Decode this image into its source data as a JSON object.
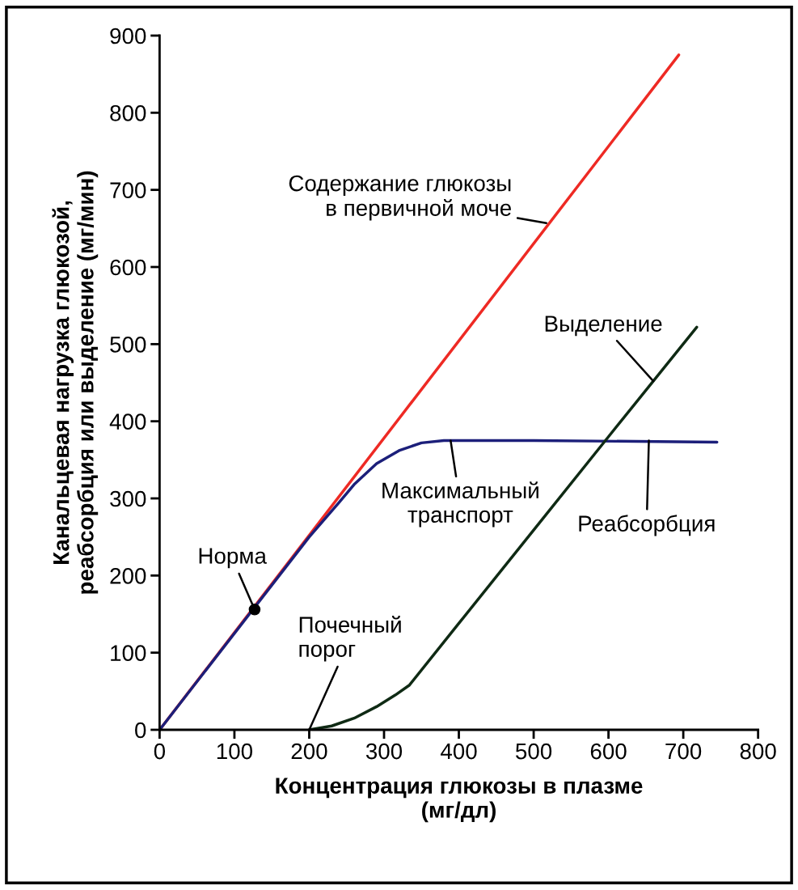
{
  "chart_data": {
    "type": "line",
    "xlabel": "Концентрация глюкозы в плазме\n(мг/дл)",
    "ylabel": "Канальцевая нагрузка глюкозой,\nреабсорбция или выделение (мг/мин)",
    "xlim": [
      0,
      800
    ],
    "ylim": [
      0,
      900
    ],
    "xticks": [
      0,
      100,
      200,
      300,
      400,
      500,
      600,
      700,
      800
    ],
    "yticks": [
      0,
      100,
      200,
      300,
      400,
      500,
      600,
      700,
      800,
      900
    ],
    "grid": false,
    "legend": false,
    "line_style": "solid",
    "series": [
      {
        "color": "#ee2a24",
        "x": [
          0,
          694
        ],
        "values": [
          0,
          875
        ]
      },
      {
        "color": "#1c1f7a",
        "x": [
          0,
          200,
          240,
          260,
          290,
          320,
          350,
          380,
          500,
          745
        ],
        "values": [
          0,
          250,
          295,
          318,
          345,
          362,
          372,
          375,
          375,
          373
        ]
      },
      {
        "color": "#0f2a14",
        "x": [
          200,
          230,
          260,
          290,
          315,
          334,
          400,
          500,
          600,
          718
        ],
        "values": [
          0,
          5,
          15,
          30,
          45,
          58,
          138,
          259,
          380,
          522
        ]
      },
      {
        "type": "scatter",
        "color": "#000000",
        "marker": "circle",
        "x": [
          127
        ],
        "values": [
          156
        ]
      }
    ],
    "annotations": [
      {
        "text": "Содержание глюкозы\nв первичной моче",
        "x": 517,
        "y": 657
      },
      {
        "text": "Выделение",
        "x": 660,
        "y": 452
      },
      {
        "text": "Максимальный\nтранспорт",
        "x": 389,
        "y": 375
      },
      {
        "text": "Реабсорбция",
        "x": 654,
        "y": 375
      },
      {
        "text": "Почечный\nпорог",
        "x": 200,
        "y": 0
      },
      {
        "text": "Норма",
        "x": 127,
        "y": 156
      }
    ]
  }
}
